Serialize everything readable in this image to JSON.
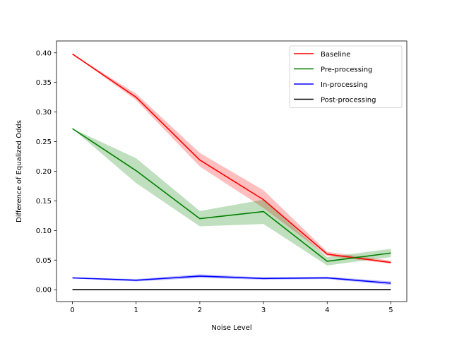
{
  "chart_data": {
    "type": "line",
    "title": "",
    "xlabel": "Noise Level",
    "ylabel": "Difference of Equalized Odds",
    "x": [
      0,
      1,
      2,
      3,
      4,
      5
    ],
    "xlim": [
      -0.25,
      5.25
    ],
    "ylim": [
      -0.02,
      0.42
    ],
    "xticks": [
      0,
      1,
      2,
      3,
      4,
      5
    ],
    "xtick_labels": [
      "0",
      "1",
      "2",
      "3",
      "4",
      "5"
    ],
    "yticks": [
      0.0,
      0.05,
      0.1,
      0.15,
      0.2,
      0.25,
      0.3,
      0.35,
      0.4
    ],
    "ytick_labels": [
      "0.00",
      "0.05",
      "0.10",
      "0.15",
      "0.20",
      "0.25",
      "0.30",
      "0.35",
      "0.40"
    ],
    "grid": false,
    "legend_position": "top-right",
    "series": [
      {
        "name": "Baseline",
        "color": "#ff0000",
        "values": [
          0.398,
          0.325,
          0.219,
          0.152,
          0.06,
          0.046
        ],
        "lower": [
          0.398,
          0.32,
          0.208,
          0.138,
          0.057,
          0.044
        ],
        "upper": [
          0.398,
          0.331,
          0.231,
          0.168,
          0.064,
          0.049
        ]
      },
      {
        "name": "Pre-processing",
        "color": "#008000",
        "values": [
          0.272,
          0.201,
          0.12,
          0.132,
          0.048,
          0.062
        ],
        "lower": [
          0.272,
          0.18,
          0.107,
          0.111,
          0.041,
          0.055
        ],
        "upper": [
          0.272,
          0.222,
          0.133,
          0.152,
          0.055,
          0.069
        ]
      },
      {
        "name": "In-processing",
        "color": "#0000ff",
        "values": [
          0.02,
          0.016,
          0.023,
          0.019,
          0.02,
          0.011
        ],
        "lower": [
          0.019,
          0.014,
          0.02,
          0.017,
          0.018,
          0.008
        ],
        "upper": [
          0.021,
          0.018,
          0.026,
          0.021,
          0.022,
          0.014
        ]
      },
      {
        "name": "Post-processing",
        "color": "#000000",
        "values": [
          0.0,
          0.0,
          0.0,
          0.0,
          0.0,
          0.0
        ],
        "lower": [
          0.0,
          0.0,
          0.0,
          0.0,
          0.0,
          0.0
        ],
        "upper": [
          0.0,
          0.0,
          0.0,
          0.0,
          0.0,
          0.0
        ]
      }
    ]
  }
}
